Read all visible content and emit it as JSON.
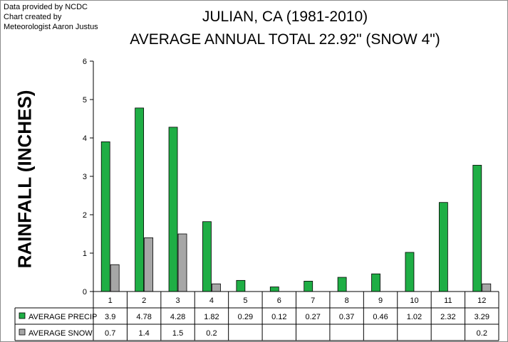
{
  "credits": [
    "Data provided by NCDC",
    "Chart created by",
    "Meteorologist Aaron Justus"
  ],
  "chart_data": {
    "type": "bar",
    "title": "JULIAN, CA (1981-2010)",
    "subtitle": "AVERAGE ANNUAL TOTAL 22.92\" (SNOW 4\")",
    "ylabel": "RAINFALL (INCHES)",
    "xlabel": "",
    "ylim": [
      0,
      6
    ],
    "yticks": [
      "0",
      "1",
      "2",
      "3",
      "4",
      "5",
      "6"
    ],
    "categories": [
      "1",
      "2",
      "3",
      "4",
      "5",
      "6",
      "7",
      "8",
      "9",
      "10",
      "11",
      "12"
    ],
    "series": [
      {
        "name": "AVERAGE PRECIP",
        "color": "#1fae45",
        "values": [
          3.9,
          4.78,
          4.28,
          1.82,
          0.29,
          0.12,
          0.27,
          0.37,
          0.46,
          1.02,
          2.32,
          3.29
        ],
        "labels": [
          "3.9",
          "4.78",
          "4.28",
          "1.82",
          "0.29",
          "0.12",
          "0.27",
          "0.37",
          "0.46",
          "1.02",
          "2.32",
          "3.29"
        ]
      },
      {
        "name": "AVERAGE SNOW",
        "color": "#a6a6a6",
        "values": [
          0.7,
          1.4,
          1.5,
          0.2,
          null,
          null,
          null,
          null,
          null,
          null,
          null,
          0.2
        ],
        "labels": [
          "0.7",
          "1.4",
          "1.5",
          "0.2",
          "",
          "",
          "",
          "",
          "",
          "",
          "",
          "0.2"
        ]
      }
    ],
    "grid": false,
    "legend": "data table below chart"
  }
}
